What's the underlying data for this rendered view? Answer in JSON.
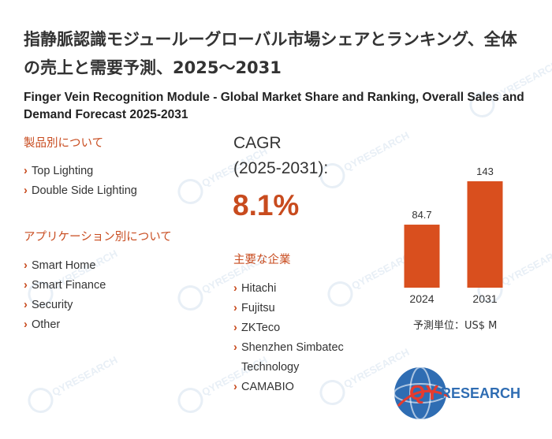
{
  "title_jp": "指静脈認識モジュールーグローバル市場シェアとランキング、全体の売上と需要予測、2025～2031",
  "title_en": "Finger Vein Recognition Module - Global Market Share and Ranking, Overall Sales and Demand Forecast 2025-2031",
  "product_section": {
    "heading": "製品別について",
    "items": [
      "Top Lighting",
      "Double Side Lighting"
    ]
  },
  "application_section": {
    "heading": "アプリケーション別について",
    "items": [
      "Smart Home",
      "Smart Finance",
      "Security",
      "Other"
    ]
  },
  "cagr": {
    "label_line1": "CAGR",
    "label_line2": "(2025-2031):",
    "value": "8.1%"
  },
  "companies_section": {
    "heading": "主要な企業",
    "items": [
      "Hitachi",
      "Fujitsu",
      "ZKTeco",
      "Shenzhen Simbatec Technology",
      "CAMABIO"
    ]
  },
  "unit_label": "予測単位：US$ M",
  "logo_text": {
    "q": "QY",
    "rest": "RESEARCH"
  },
  "watermark_text": "QYRESEARCH",
  "colors": {
    "accent": "#c84b1e",
    "bar": "#d94f1e",
    "logo_blue": "#2f6db3"
  },
  "icons": {
    "bullet": "chevron-right-icon",
    "logo": "globe-icon"
  },
  "chart_data": {
    "type": "bar",
    "categories": [
      "2024",
      "2031"
    ],
    "values": [
      84.7,
      143
    ],
    "value_labels": [
      "84.7",
      "143"
    ],
    "unit": "US$ M",
    "title": "",
    "xlabel": "",
    "ylabel": ""
  }
}
